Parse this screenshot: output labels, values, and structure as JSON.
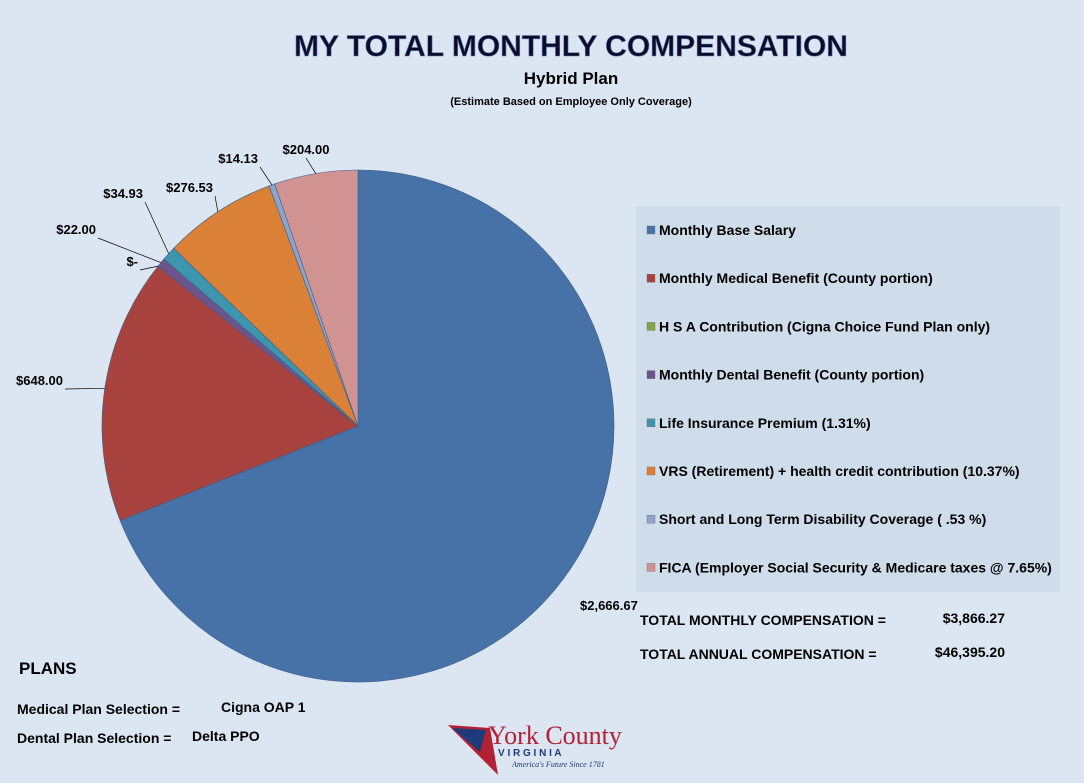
{
  "chart_data": {
    "type": "pie",
    "title": "MY TOTAL MONTHLY COMPENSATION",
    "subtitle": "Hybrid Plan",
    "note": "(Estimate Based on Employee Only Coverage)",
    "categories": [
      "Monthly Base Salary",
      "Monthly Medical Benefit (County portion)",
      "H S A  Contribution (Cigna Choice Fund Plan only)",
      "Monthly Dental Benefit (County portion)",
      "Life Insurance Premium (1.31%)",
      "VRS (Retirement) + health credit contribution (10.37%)",
      "Short and Long Term Disability Coverage ( .53 %)",
      "FICA (Employer Social Security & Medicare taxes @ 7.65%)"
    ],
    "values": [
      2666.67,
      648.0,
      0,
      22.0,
      34.93,
      276.53,
      14.13,
      204.0
    ],
    "value_labels": [
      "$2,666.67",
      "$648.00",
      "$-",
      "$22.00",
      "$34.93",
      "$276.53",
      "$14.13",
      "$204.00"
    ],
    "colors": [
      "#4672a8",
      "#a8423f",
      "#86a44a",
      "#6e548d",
      "#3d96ae",
      "#da8137",
      "#8ea5cb",
      "#d19392"
    ],
    "legend": "right"
  },
  "summary": {
    "rows": [
      {
        "label": "TOTAL MONTHLY COMPENSATION =",
        "value": "$3,866.27"
      },
      {
        "label": "TOTAL ANNUAL COMPENSATION   =",
        "value": "$46,395.20"
      }
    ]
  },
  "plans": {
    "title": "PLANS",
    "rows": [
      {
        "label": "Medical Plan Selection =",
        "value": "Cigna OAP 1"
      },
      {
        "label": "Dental Plan Selection   =",
        "value": "Delta PPO"
      }
    ]
  },
  "logo": {
    "name": "York County",
    "state": "V I R G I N I A",
    "tagline": "America's Future Since 1781"
  }
}
